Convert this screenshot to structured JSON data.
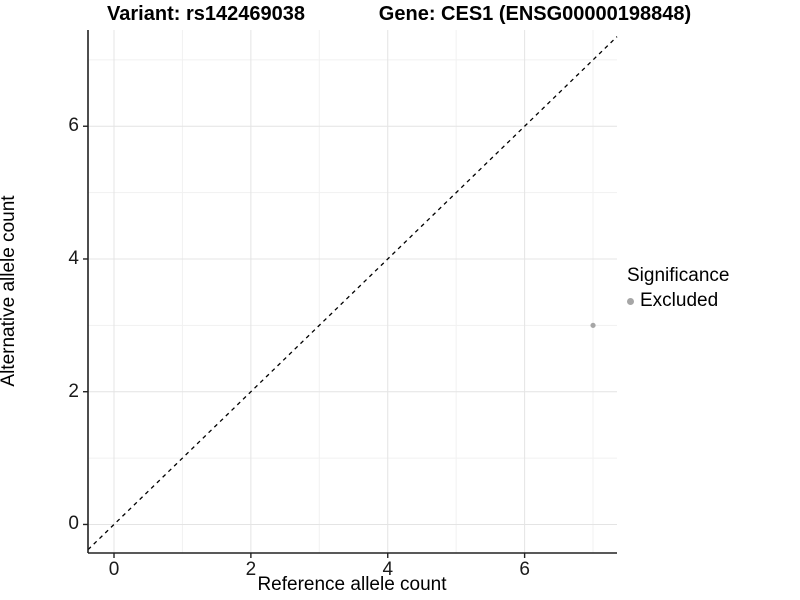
{
  "figure": {
    "title_left": "Variant: rs142469038",
    "title_right": "Gene: CES1 (ENSG00000198848)"
  },
  "legend": {
    "title": "Significance",
    "items": [
      {
        "label": "Excluded",
        "color": "#a6a6a6"
      }
    ]
  },
  "chart_data": {
    "type": "scatter",
    "title": "Variant: rs142469038   Gene: CES1 (ENSG00000198848)",
    "xlabel": "Reference allele count",
    "ylabel": "Alternative allele count",
    "xlim": [
      -0.38,
      7.35
    ],
    "ylim": [
      -0.43,
      7.45
    ],
    "x_major_ticks": [
      0,
      2,
      4,
      6
    ],
    "y_major_ticks": [
      0,
      2,
      4,
      6
    ],
    "x_minor_ticks": [
      1,
      3,
      5,
      7
    ],
    "y_minor_ticks": [
      1,
      3,
      5,
      7
    ],
    "grid": "major+minor",
    "legend_position": "right",
    "series": [
      {
        "name": "Excluded",
        "marker": "circle",
        "color": "#a6a6a6",
        "point_radius": 2.6,
        "points": [
          [
            7,
            3
          ]
        ]
      }
    ],
    "reference_line": {
      "slope": 1,
      "intercept": 0,
      "style": "dashed",
      "color": "#000000"
    }
  },
  "style": {
    "grid_major_color": "#e4e4e4",
    "grid_minor_color": "#f1f1f1",
    "axis_line_color": "#222222",
    "tick_mark_color": "#222222"
  }
}
